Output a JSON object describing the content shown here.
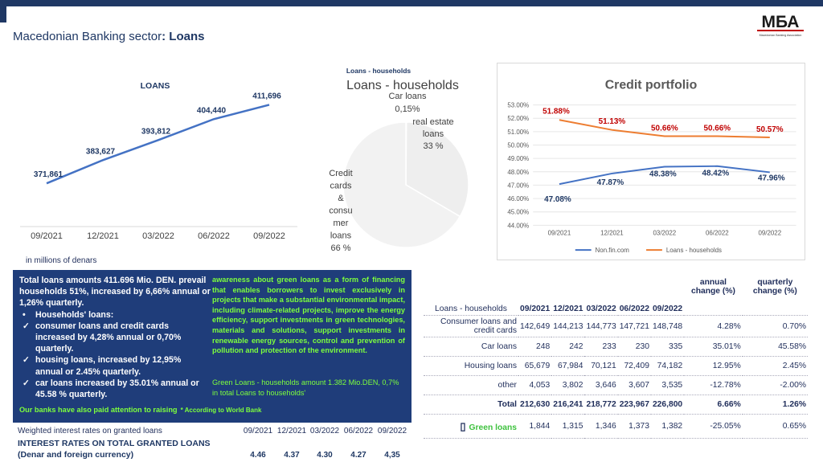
{
  "header": {
    "title_prefix": "Macedonian Banking sector",
    "title_bold": ": Loans",
    "logo_text": "МБА",
    "logo_subtitle": "Macedonian Banking Association"
  },
  "colors": {
    "navy": "#1f3864",
    "panel_blue": "#1f3d7a",
    "green_text": "#7dff3d",
    "series_blue": "#4472c4",
    "series_orange": "#ed7d31",
    "red_label": "#c00000"
  },
  "loans_chart": {
    "chart_data": {
      "type": "line",
      "title": "LOANS",
      "categories": [
        "09/2021",
        "12/2021",
        "03/2022",
        "06/2022",
        "09/2022"
      ],
      "values": [
        371861,
        383627,
        393812,
        404440,
        411696
      ],
      "value_labels": [
        "371,861",
        "383,627",
        "393,812",
        "404,440",
        "411,696"
      ]
    },
    "unit_note": "in millions of denars"
  },
  "pie_chart": {
    "chart_data": {
      "type": "pie",
      "title": "Loans -  households",
      "title_small": "Loans -  households",
      "slices": [
        {
          "label": "Car loans",
          "pct_text": "0,15%",
          "value": 0.15
        },
        {
          "label": "real estate loans",
          "pct_text": "33 %",
          "value": 33
        },
        {
          "label": "Credit cards & consumer loans",
          "pct_text": "66 %",
          "value": 66
        }
      ],
      "label_lines_car": [
        "Car loans",
        "0,15%"
      ],
      "label_lines_real": [
        "real estate",
        "loans",
        "33 %"
      ],
      "label_lines_credit": [
        "Credit",
        "cards",
        "&",
        "consu",
        "mer",
        "loans",
        "66 %"
      ]
    }
  },
  "credit_chart": {
    "chart_data": {
      "type": "line",
      "title": "Credit portfolio",
      "categories": [
        "09/2021",
        "12/2021",
        "03/2022",
        "06/2022",
        "09/2022"
      ],
      "ylim": [
        44,
        53
      ],
      "yticks": [
        "44.00%",
        "45.00%",
        "46.00%",
        "47.00%",
        "48.00%",
        "49.00%",
        "50.00%",
        "51.00%",
        "52.00%",
        "53.00%"
      ],
      "series": [
        {
          "name": "Non.fin.com",
          "values": [
            47.08,
            47.87,
            48.38,
            48.42,
            47.96
          ],
          "labels": [
            "47.08%",
            "47.87%",
            "48.38%",
            "48.42%",
            "47.96%"
          ]
        },
        {
          "name": "Loans -  households",
          "values": [
            51.88,
            51.13,
            50.66,
            50.66,
            50.57
          ],
          "labels": [
            "51.88%",
            "51.13%",
            "50.66%",
            "50.66%",
            "50.57%"
          ]
        }
      ],
      "legend_position": "bottom",
      "grid": true
    }
  },
  "panel": {
    "intro": "Total loans amounts 411.696 Mio. DEN. prevail households 51%, increased by 6,66% annual or 1,26% quarterly.",
    "items": [
      {
        "mark": "•",
        "text": "Households' loans:"
      },
      {
        "mark": "✓",
        "text": "consumer loans and credit cards increased by 4,28% annual or 0,70% quarterly."
      },
      {
        "mark": "✓",
        "text": "housing loans, increased by 12,95% annual or 2.45%  quarterly."
      },
      {
        "mark": "✓",
        "text": "car loans increased by 35.01% annual or 45.58 % quarterly."
      }
    ],
    "right_text": "awareness about green loans as a form of financing that enables borrowers to invest exclusively in projects that make a substantial environmental impact, including climate-related projects, improve the energy efficiency, support investments in green technologies, materials and solutions, support investments in renewable energy sources, control and prevention of pollution and protection of the environment.",
    "green_note": "Green Loans -   households amount 1.382 Mio.DEN, 0,7% in total Loans to households'",
    "bottom_lead": "",
    "bottom_text": "Our   banks   have   also   paid   attention   to   raising",
    "bottom_source": "* According to World Bank"
  },
  "rates": {
    "label": "Weighted interest rates on granted loans",
    "title_line1": "INTEREST RATES ON TOTAL GRANTED LOANS",
    "title_line2": "(Denar and foreign currency)",
    "periods": [
      "09/2021",
      "12/2021",
      "03/2022",
      "06/2022",
      "09/2022"
    ],
    "values": [
      "4.46",
      "4.37",
      "4.30",
      "4.27",
      "4,35"
    ]
  },
  "table": {
    "corner": "Loans -  households",
    "periods": [
      "09/2021",
      "12/2021",
      "03/2022",
      "06/2022",
      "09/2022"
    ],
    "annual": "annual change (%)",
    "quarterly": "quarterly change (%)",
    "rows": [
      {
        "label": "Consumer loans and credit cards",
        "values": [
          "142,649",
          "144,213",
          "144,773",
          "147,721",
          "148,748"
        ],
        "annual": "4.28%",
        "quarterly": "0.70%"
      },
      {
        "label": "Car loans",
        "values": [
          "248",
          "242",
          "233",
          "230",
          "335"
        ],
        "annual": "35.01%",
        "quarterly": "45.58%"
      },
      {
        "label": "Housing loans",
        "values": [
          "65,679",
          "67,984",
          "70,121",
          "72,409",
          "74,182"
        ],
        "annual": "12.95%",
        "quarterly": "2.45%"
      },
      {
        "label": "other",
        "values": [
          "4,053",
          "3,802",
          "3,646",
          "3,607",
          "3,535"
        ],
        "annual": "-12.78%",
        "quarterly": "-2.00%"
      },
      {
        "label": "Total",
        "values": [
          "212,630",
          "216,241",
          "218,772",
          "223,967",
          "226,800"
        ],
        "annual": "6.66%",
        "quarterly": "1.26%"
      },
      {
        "label": "Green loans",
        "values": [
          "1,844",
          "1,315",
          "1,346",
          "1,373",
          "1,382"
        ],
        "annual": "-25.05%",
        "quarterly": "0.65%"
      }
    ]
  }
}
